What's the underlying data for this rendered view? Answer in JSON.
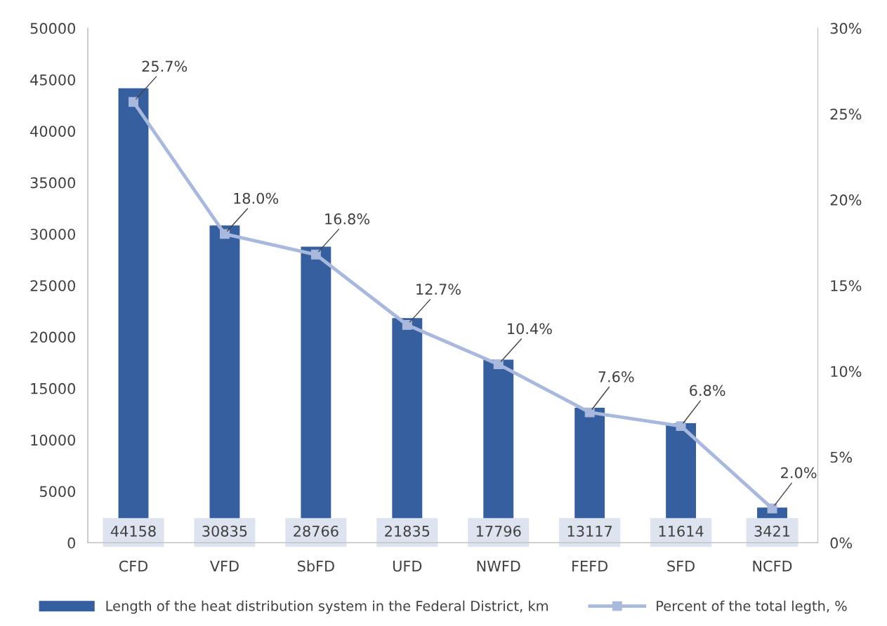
{
  "chart_data": {
    "type": "bar",
    "categories": [
      "CFD",
      "VFD",
      "SbFD",
      "UFD",
      "NWFD",
      "FEFD",
      "SFD",
      "NCFD"
    ],
    "series": [
      {
        "name": "Length of the heat distribution system in the Federal District, km",
        "color": "#355f9f",
        "values": [
          44158,
          30835,
          28766,
          21835,
          17796,
          13117,
          11614,
          3421
        ],
        "value_labels": [
          "44158",
          "30835",
          "28766",
          "21835",
          "17796",
          "13117",
          "11614",
          "3421"
        ]
      },
      {
        "name": "Percent of the total legth, %",
        "type": "line",
        "axis": "y2",
        "color": "#a9b9dd",
        "marker": "square",
        "values": [
          25.7,
          18.0,
          16.8,
          12.7,
          10.4,
          7.6,
          6.8,
          2.0
        ],
        "value_labels": [
          "25.7%",
          "18.0%",
          "16.8%",
          "12.7%",
          "10.4%",
          "7.6%",
          "6.8%",
          "2.0%"
        ]
      }
    ],
    "ylim": [
      0,
      50000
    ],
    "yticks": [
      0,
      5000,
      10000,
      15000,
      20000,
      25000,
      30000,
      35000,
      40000,
      45000,
      50000
    ],
    "y2lim": [
      0,
      30
    ],
    "y2ticks": [
      {
        "value": 0,
        "label": "0%"
      },
      {
        "value": 5,
        "label": "5%"
      },
      {
        "value": 10,
        "label": "10%"
      },
      {
        "value": 15,
        "label": "15%"
      },
      {
        "value": 20,
        "label": "20%"
      },
      {
        "value": 25,
        "label": "25%"
      },
      {
        "value": 30,
        "label": "30%"
      }
    ],
    "grid": false,
    "legend": "bottom"
  }
}
